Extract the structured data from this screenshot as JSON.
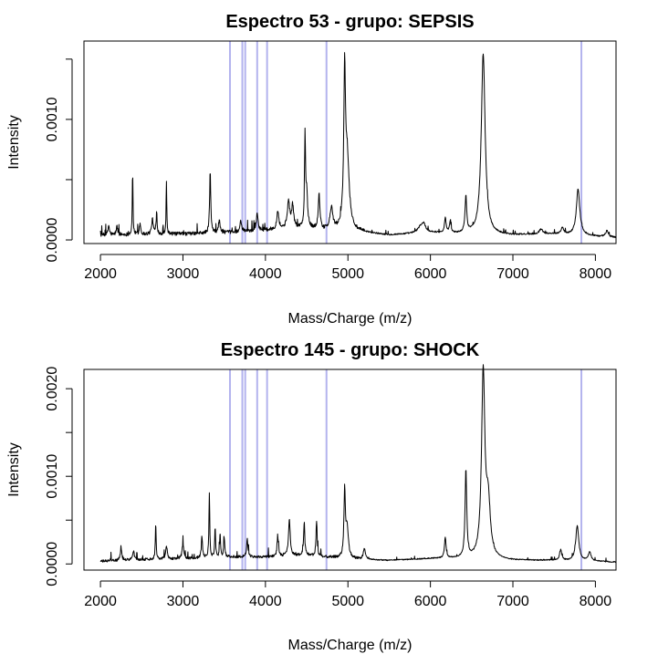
{
  "colors": {
    "highlight_lines": "#b3b3ee",
    "spectrum": "#000000"
  },
  "chart_data": [
    {
      "type": "line",
      "title": "Espectro  53 - grupo:  SEPSIS",
      "xlabel": "Mass/Charge (m/z)",
      "ylabel": "Intensity",
      "xlim": [
        1800,
        8250
      ],
      "ylim": [
        -3e-05,
        0.00165
      ],
      "x_ticks": [
        2000,
        3000,
        4000,
        5000,
        6000,
        7000,
        8000
      ],
      "y_ticks": [
        0.0,
        0.0005,
        0.001,
        0.0015
      ],
      "y_tick_labels": [
        "0.0000",
        "",
        "0.0010",
        ""
      ],
      "highlight_lines_x": [
        3570,
        3720,
        3755,
        3900,
        4020,
        4740,
        7830
      ],
      "base_values": [
        [
          2000,
          4e-05
        ],
        [
          2500,
          4.5e-05
        ],
        [
          3000,
          5e-05
        ],
        [
          3500,
          6e-05
        ],
        [
          4000,
          8e-05
        ],
        [
          4500,
          0.0001
        ],
        [
          4700,
          8e-05
        ],
        [
          5200,
          6e-05
        ],
        [
          5500,
          4e-05
        ],
        [
          6000,
          6e-05
        ],
        [
          6300,
          5e-05
        ],
        [
          7000,
          4e-05
        ],
        [
          7500,
          5e-05
        ],
        [
          8000,
          3e-05
        ],
        [
          8250,
          2e-05
        ]
      ],
      "peaks": [
        [
          2100,
          8e-05,
          10
        ],
        [
          2200,
          7e-05,
          10
        ],
        [
          2390,
          0.00053,
          5
        ],
        [
          2480,
          9e-05,
          10
        ],
        [
          2630,
          0.00012,
          12
        ],
        [
          2680,
          0.00012,
          10
        ],
        [
          2800,
          0.00045,
          5
        ],
        [
          3330,
          0.00052,
          8
        ],
        [
          3440,
          0.0001,
          12
        ],
        [
          3700,
          8e-05,
          12
        ],
        [
          3900,
          0.00015,
          12
        ],
        [
          4150,
          0.00015,
          15
        ],
        [
          4280,
          0.00022,
          18
        ],
        [
          4330,
          0.00018,
          15
        ],
        [
          4480,
          0.00075,
          7
        ],
        [
          4500,
          0.00028,
          12
        ],
        [
          4650,
          0.00028,
          12
        ],
        [
          4800,
          0.00018,
          20
        ],
        [
          4960,
          0.00118,
          12
        ],
        [
          4990,
          0.0006,
          30
        ],
        [
          5880,
          5e-05,
          40
        ],
        [
          5920,
          6e-05,
          25
        ],
        [
          6180,
          0.00012,
          12
        ],
        [
          6240,
          9e-05,
          12
        ],
        [
          6430,
          0.0003,
          12
        ],
        [
          6640,
          0.0015,
          28
        ],
        [
          7340,
          4e-05,
          25
        ],
        [
          7600,
          5e-05,
          20
        ],
        [
          7790,
          0.00038,
          25
        ],
        [
          8140,
          5e-05,
          20
        ]
      ]
    },
    {
      "type": "line",
      "title": "Espectro  145 - grupo:  SHOCK",
      "xlabel": "Mass/Charge (m/z)",
      "ylabel": "Intensity",
      "xlim": [
        1800,
        8250
      ],
      "ylim": [
        -7e-05,
        0.00222
      ],
      "x_ticks": [
        2000,
        3000,
        4000,
        5000,
        6000,
        7000,
        8000
      ],
      "y_ticks": [
        0.0,
        0.0005,
        0.001,
        0.0015,
        0.002
      ],
      "y_tick_labels": [
        "0.0000",
        "",
        "0.0010",
        "",
        "0.0020"
      ],
      "highlight_lines_x": [
        3570,
        3720,
        3755,
        3900,
        4020,
        4740,
        7830
      ],
      "base_values": [
        [
          2000,
          3e-05
        ],
        [
          2500,
          5e-05
        ],
        [
          3000,
          6e-05
        ],
        [
          3500,
          8e-05
        ],
        [
          4000,
          8e-05
        ],
        [
          4500,
          0.0001
        ],
        [
          4700,
          8e-05
        ],
        [
          5200,
          5e-05
        ],
        [
          5500,
          4e-05
        ],
        [
          6000,
          6e-05
        ],
        [
          6300,
          6e-05
        ],
        [
          7000,
          4e-05
        ],
        [
          7500,
          4e-05
        ],
        [
          8000,
          3e-05
        ],
        [
          8250,
          2e-05
        ]
      ],
      "peaks": [
        [
          2250,
          0.00012,
          12
        ],
        [
          2400,
          0.0001,
          12
        ],
        [
          2670,
          0.00042,
          6
        ],
        [
          2800,
          0.00015,
          12
        ],
        [
          3000,
          0.00017,
          12
        ],
        [
          3230,
          0.00025,
          8
        ],
        [
          3320,
          0.00072,
          6
        ],
        [
          3390,
          0.00035,
          6
        ],
        [
          3450,
          0.00028,
          6
        ],
        [
          3500,
          0.00022,
          8
        ],
        [
          3780,
          0.0002,
          10
        ],
        [
          4150,
          0.00022,
          10
        ],
        [
          4290,
          0.00042,
          12
        ],
        [
          4470,
          0.00038,
          8
        ],
        [
          4620,
          0.0004,
          8
        ],
        [
          4960,
          0.00075,
          10
        ],
        [
          4990,
          0.00035,
          18
        ],
        [
          5200,
          0.00012,
          15
        ],
        [
          6180,
          0.00023,
          12
        ],
        [
          6430,
          0.001,
          12
        ],
        [
          6640,
          0.0021,
          24
        ],
        [
          6700,
          0.0006,
          30
        ],
        [
          7580,
          0.00012,
          15
        ],
        [
          7780,
          0.0004,
          22
        ],
        [
          7930,
          0.0001,
          20
        ]
      ]
    }
  ]
}
